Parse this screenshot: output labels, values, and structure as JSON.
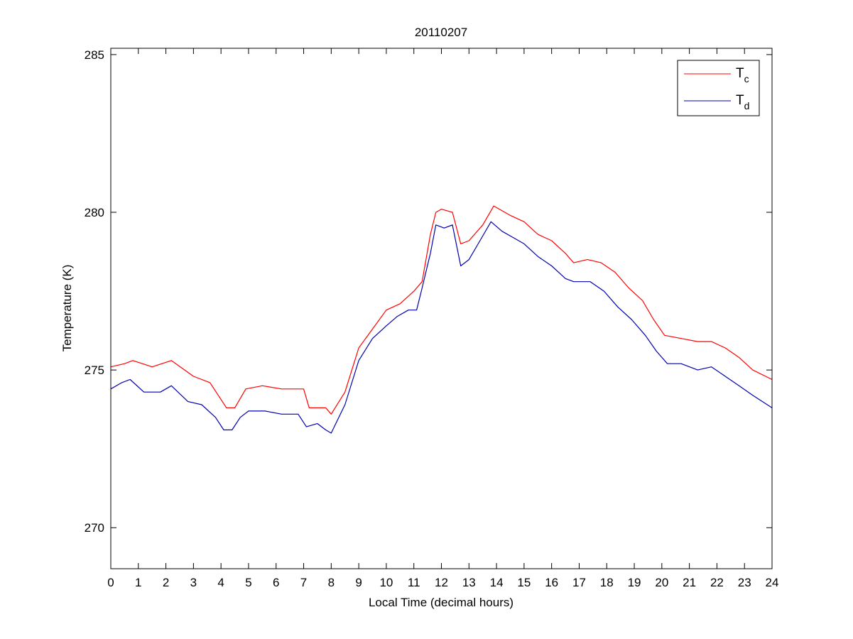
{
  "chart_data": {
    "type": "line",
    "title": "20110207",
    "xlabel": "Local Time (decimal hours)",
    "ylabel": "Temperature (K)",
    "xlim": [
      0,
      24
    ],
    "ylim": [
      268.7,
      285.2
    ],
    "xticks": [
      0,
      1,
      2,
      3,
      4,
      5,
      6,
      7,
      8,
      9,
      10,
      11,
      12,
      13,
      14,
      15,
      16,
      17,
      18,
      19,
      20,
      21,
      22,
      23,
      24
    ],
    "yticks": [
      270,
      275,
      280,
      285
    ],
    "grid": false,
    "legend_position": "top-right",
    "series": [
      {
        "name": "T",
        "name_subscript": "c",
        "color": "#ff0000",
        "x": [
          0,
          0.5,
          0.8,
          1.5,
          2.2,
          3.0,
          3.6,
          4.2,
          4.5,
          4.9,
          5.5,
          6.2,
          7.0,
          7.2,
          7.8,
          8.0,
          8.5,
          9.0,
          9.5,
          10.0,
          10.5,
          11.0,
          11.3,
          11.6,
          11.8,
          12.0,
          12.4,
          12.7,
          13.0,
          13.5,
          13.9,
          14.5,
          15.0,
          15.5,
          16.0,
          16.5,
          16.8,
          17.3,
          17.8,
          18.3,
          18.8,
          19.3,
          19.7,
          20.1,
          20.7,
          21.3,
          21.8,
          22.3,
          22.8,
          23.3,
          24.0
        ],
        "y": [
          275.1,
          275.2,
          275.3,
          275.1,
          275.3,
          274.8,
          274.6,
          273.8,
          273.8,
          274.4,
          274.5,
          274.4,
          274.4,
          273.8,
          273.8,
          273.6,
          274.3,
          275.7,
          276.3,
          276.9,
          277.1,
          277.5,
          277.8,
          279.3,
          280.0,
          280.1,
          280.0,
          279.0,
          279.1,
          279.6,
          280.2,
          279.9,
          279.7,
          279.3,
          279.1,
          278.7,
          278.4,
          278.5,
          278.4,
          278.1,
          277.6,
          277.2,
          276.6,
          276.1,
          276.0,
          275.9,
          275.9,
          275.7,
          275.4,
          275.0,
          274.7
        ]
      },
      {
        "name": "T",
        "name_subscript": "d",
        "color": "#0000b0",
        "x": [
          0,
          0.4,
          0.7,
          1.2,
          1.8,
          2.2,
          2.8,
          3.3,
          3.8,
          4.1,
          4.4,
          4.7,
          5.0,
          5.6,
          6.2,
          6.8,
          7.1,
          7.5,
          7.8,
          8.0,
          8.5,
          9.0,
          9.5,
          10.0,
          10.4,
          10.8,
          11.1,
          11.3,
          11.6,
          11.8,
          12.1,
          12.4,
          12.7,
          13.0,
          13.4,
          13.8,
          14.2,
          14.6,
          15.0,
          15.5,
          16.0,
          16.5,
          16.8,
          17.4,
          17.9,
          18.4,
          18.9,
          19.4,
          19.8,
          20.2,
          20.7,
          21.3,
          21.8,
          22.3,
          22.8,
          23.3,
          24.0
        ],
        "y": [
          274.4,
          274.6,
          274.7,
          274.3,
          274.3,
          274.5,
          274.0,
          273.9,
          273.5,
          273.1,
          273.1,
          273.5,
          273.7,
          273.7,
          273.6,
          273.6,
          273.2,
          273.3,
          273.1,
          273.0,
          273.9,
          275.3,
          276.0,
          276.4,
          276.7,
          276.9,
          276.9,
          277.6,
          278.7,
          279.6,
          279.5,
          279.6,
          278.3,
          278.5,
          279.1,
          279.7,
          279.4,
          279.2,
          279.0,
          278.6,
          278.3,
          277.9,
          277.8,
          277.8,
          277.5,
          277.0,
          276.6,
          276.1,
          275.6,
          275.2,
          275.2,
          275.0,
          275.1,
          274.8,
          274.5,
          274.2,
          273.8
        ]
      }
    ]
  }
}
